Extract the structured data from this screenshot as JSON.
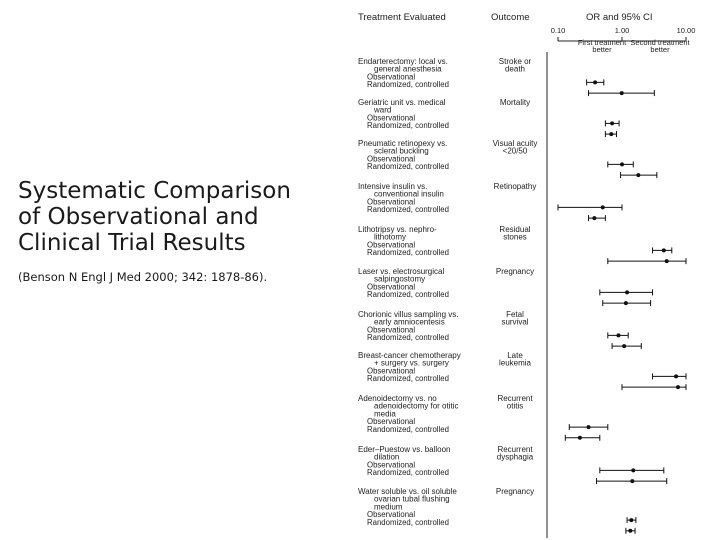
{
  "slide": {
    "title": "Systematic Comparison of Observational and Clinical Trial Results",
    "citation": "(Benson N Engl J Med 2000; 342: 1878-86)."
  },
  "chart_data": {
    "type": "forest",
    "headers": {
      "treatment": "Treatment Evaluated",
      "outcome": "Outcome",
      "or": "OR and 95% CI"
    },
    "x_ticks": [
      "0.10",
      "1.00",
      "10.00"
    ],
    "x_scale": "log",
    "xlim": [
      0.1,
      10
    ],
    "x_direction_labels": {
      "left": [
        "First treatment",
        "better"
      ],
      "right": [
        "Second treatment",
        "better"
      ]
    },
    "row_labels": [
      "Observational",
      "Randomized, controlled"
    ],
    "comparisons": [
      {
        "name": [
          "Endarterectomy: local vs.",
          "general anesthesia"
        ],
        "outcome": [
          "Stroke or",
          "death"
        ],
        "rows": [
          {
            "or": 0.38,
            "lo": 0.28,
            "hi": 0.52
          },
          {
            "or": 0.99,
            "lo": 0.3,
            "hi": 3.2
          }
        ]
      },
      {
        "name": [
          "Geriatric unit vs. medical",
          "ward"
        ],
        "outcome": [
          "Mortality"
        ],
        "rows": [
          {
            "or": 0.7,
            "lo": 0.55,
            "hi": 0.9
          },
          {
            "or": 0.68,
            "lo": 0.55,
            "hi": 0.82
          }
        ]
      },
      {
        "name": [
          "Pneumatic retinopexy vs.",
          "scleral buckling"
        ],
        "outcome": [
          "Visual acuity",
          "<20/50"
        ],
        "rows": [
          {
            "or": 1.0,
            "lo": 0.6,
            "hi": 1.5
          },
          {
            "or": 1.8,
            "lo": 0.95,
            "hi": 3.5
          }
        ]
      },
      {
        "name": [
          "Intensive insulin vs.",
          "conventional insulin"
        ],
        "outcome": [
          "Retinopathy"
        ],
        "rows": [
          {
            "or": 0.5,
            "lo": 0.1,
            "hi": 1.0
          },
          {
            "or": 0.37,
            "lo": 0.3,
            "hi": 0.55
          }
        ]
      },
      {
        "name": [
          "Lithotripsy vs. nephro-",
          "lithotomy"
        ],
        "outcome": [
          "Residual",
          "stones"
        ],
        "rows": [
          {
            "or": 4.5,
            "lo": 3.0,
            "hi": 6.0
          },
          {
            "or": 5.0,
            "lo": 0.6,
            "hi": 10.0
          }
        ]
      },
      {
        "name": [
          "Laser vs. electrosurgical",
          "salpingostomy"
        ],
        "outcome": [
          "Pregnancy"
        ],
        "rows": [
          {
            "or": 1.2,
            "lo": 0.45,
            "hi": 3.0
          },
          {
            "or": 1.15,
            "lo": 0.5,
            "hi": 2.8
          }
        ]
      },
      {
        "name": [
          "Chorionic villus sampling vs.",
          "early amniocentesis"
        ],
        "outcome": [
          "Fetal",
          "survival"
        ],
        "rows": [
          {
            "or": 0.88,
            "lo": 0.6,
            "hi": 1.25
          },
          {
            "or": 1.08,
            "lo": 0.7,
            "hi": 2.0
          }
        ]
      },
      {
        "name": [
          "Breast-cancer chemotherapy",
          "+ surgery vs. surgery"
        ],
        "outcome": [
          "Late",
          "leukemia"
        ],
        "rows": [
          {
            "or": 7.0,
            "lo": 3.0,
            "hi": 10.0
          },
          {
            "or": 7.5,
            "lo": 1.0,
            "hi": 10.0
          }
        ]
      },
      {
        "name": [
          "Adenoidectomy vs. no",
          "adenoidectomy for otitic",
          "media"
        ],
        "outcome": [
          "Recurrent",
          "otitis"
        ],
        "rows": [
          {
            "or": 0.3,
            "lo": 0.15,
            "hi": 0.6
          },
          {
            "or": 0.22,
            "lo": 0.13,
            "hi": 0.45
          }
        ]
      },
      {
        "name": [
          "Eder–Puestow vs. balloon",
          "dilation"
        ],
        "outcome": [
          "Recurrent",
          "dysphagia"
        ],
        "rows": [
          {
            "or": 1.5,
            "lo": 0.45,
            "hi": 4.5
          },
          {
            "or": 1.45,
            "lo": 0.4,
            "hi": 5.0
          }
        ]
      },
      {
        "name": [
          "Water soluble vs. oil soluble",
          "ovarian tubal flushing",
          "medium"
        ],
        "outcome": [
          "Pregnancy"
        ],
        "rows": [
          {
            "or": 1.4,
            "lo": 1.2,
            "hi": 1.65
          },
          {
            "or": 1.35,
            "lo": 1.15,
            "hi": 1.6
          }
        ]
      }
    ]
  }
}
